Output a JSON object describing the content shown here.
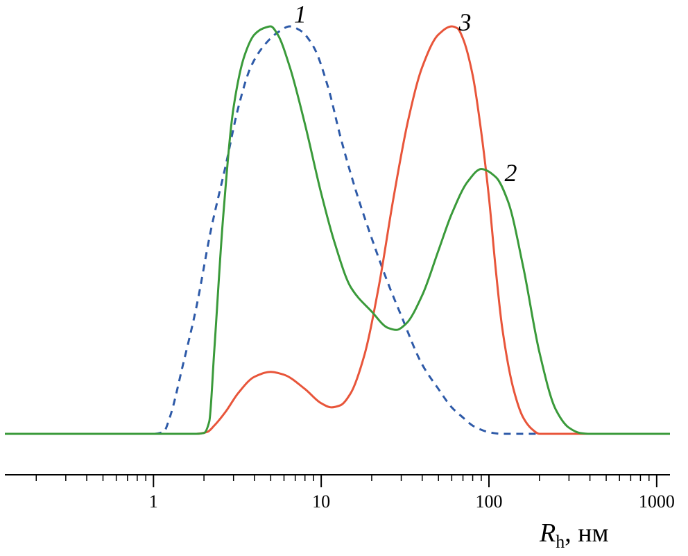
{
  "chart_data": {
    "type": "line",
    "xscale": "log",
    "xlim": [
      0.13,
      1200
    ],
    "ylim": [
      0,
      1
    ],
    "grid": false,
    "xlabel": {
      "symbol": "R",
      "subscript": "h",
      "unit": ", нм"
    },
    "ylabel": "",
    "xticks": [
      {
        "value": 1,
        "label": "1"
      },
      {
        "value": 10,
        "label": "10"
      },
      {
        "value": 100,
        "label": "100"
      },
      {
        "value": 1000,
        "label": "1000"
      }
    ],
    "series": [
      {
        "name": "1",
        "color": "#2e5aa8",
        "style": "dashed",
        "x": [
          0.13,
          1.0,
          1.15,
          1.25,
          1.5,
          1.8,
          2.2,
          2.7,
          3.2,
          3.8,
          4.5,
          5.5,
          6.5,
          7.5,
          9,
          11,
          13,
          16,
          20,
          25,
          30,
          40,
          50,
          60,
          70,
          80,
          90,
          100,
          120,
          140,
          170,
          200,
          300,
          500,
          1200
        ],
        "y": [
          0,
          0,
          0.005,
          0.04,
          0.17,
          0.31,
          0.5,
          0.66,
          0.8,
          0.9,
          0.95,
          0.985,
          1.0,
          0.99,
          0.95,
          0.85,
          0.73,
          0.6,
          0.48,
          0.37,
          0.29,
          0.17,
          0.11,
          0.065,
          0.04,
          0.02,
          0.01,
          0.004,
          0,
          0,
          0,
          0,
          0,
          0,
          0
        ]
      },
      {
        "name": "2",
        "color": "#3a9a3a",
        "style": "solid",
        "x": [
          0.13,
          1.8,
          2.0,
          2.15,
          2.3,
          2.6,
          3.0,
          3.5,
          4.0,
          4.5,
          5.0,
          5.5,
          6.5,
          8,
          10,
          12,
          15,
          20,
          25,
          28,
          32,
          40,
          50,
          60,
          75,
          90,
          110,
          130,
          160,
          200,
          250,
          300,
          350,
          400,
          1200
        ],
        "y": [
          0,
          0,
          0.002,
          0.03,
          0.2,
          0.53,
          0.8,
          0.93,
          0.98,
          0.995,
          1.0,
          0.98,
          0.9,
          0.76,
          0.59,
          0.47,
          0.36,
          0.3,
          0.26,
          0.255,
          0.27,
          0.34,
          0.45,
          0.54,
          0.62,
          0.65,
          0.63,
          0.57,
          0.41,
          0.2,
          0.06,
          0.015,
          0.002,
          0,
          0
        ]
      },
      {
        "name": "3",
        "color": "#e8553a",
        "style": "solid",
        "x": [
          0.13,
          1.8,
          2.1,
          2.3,
          2.7,
          3.2,
          4.0,
          5.0,
          6.0,
          8,
          10,
          11.5,
          13,
          15,
          18,
          22,
          27,
          33,
          40,
          50,
          60,
          65,
          70,
          80,
          90,
          100,
          110,
          120,
          140,
          160,
          180,
          200,
          1200
        ],
        "y": [
          0,
          0,
          0.005,
          0.02,
          0.055,
          0.1,
          0.14,
          0.152,
          0.145,
          0.11,
          0.075,
          0.065,
          0.07,
          0.1,
          0.19,
          0.36,
          0.58,
          0.77,
          0.9,
          0.98,
          1.0,
          0.995,
          0.97,
          0.88,
          0.74,
          0.58,
          0.4,
          0.26,
          0.11,
          0.04,
          0.012,
          0,
          0
        ]
      }
    ],
    "curve_labels": [
      {
        "text": "1",
        "x": 7.5,
        "y": 1.02
      },
      {
        "text": "3",
        "x": 72,
        "y": 1.0
      },
      {
        "text": "2",
        "x": 135,
        "y": 0.63
      }
    ]
  }
}
